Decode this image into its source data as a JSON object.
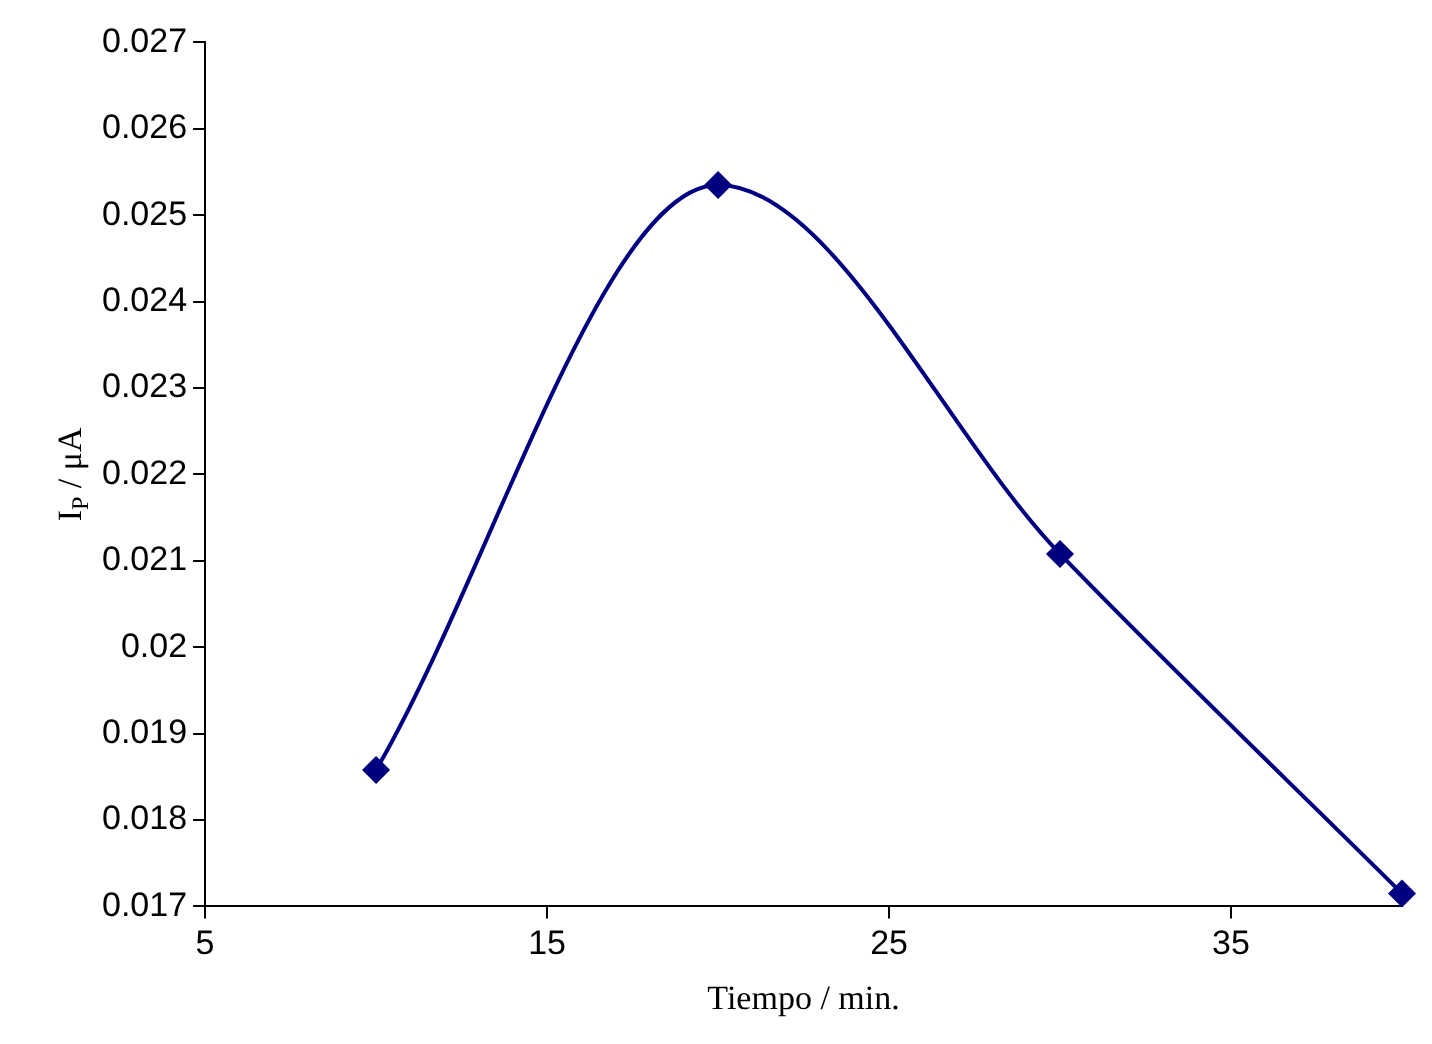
{
  "chart_data": {
    "type": "line",
    "xlabel": "Tiempo / min.",
    "ylabel": "I$_{P}$ / μA",
    "x": [
      10,
      20,
      30,
      40
    ],
    "series": [
      {
        "color": "#000080",
        "values": [
          0.01858,
          0.02535,
          0.02108,
          0.01715
        ]
      }
    ],
    "xlim": [
      5,
      40
    ],
    "xticks": [
      5,
      15,
      25,
      35
    ],
    "ylim": [
      0.017,
      0.027
    ],
    "yticks": [
      0.017,
      0.018,
      0.019,
      0.02,
      0.021,
      0.022,
      0.023,
      0.024,
      0.025,
      0.026,
      0.027
    ],
    "grid": false,
    "legend": false,
    "marker": "diamond",
    "line_style": "solid"
  }
}
